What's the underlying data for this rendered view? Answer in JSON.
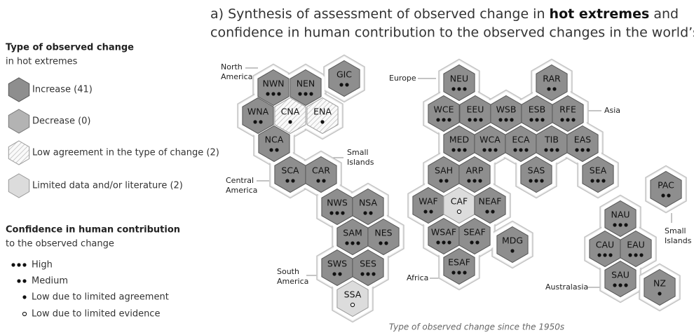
{
  "title": {
    "line1_pre": "a) Synthesis of assessment of observed change in ",
    "line1_bold": "hot extremes",
    "line1_post": " and",
    "line2": "confidence in human contribution to the observed changes in the world’s regions"
  },
  "legend": {
    "type_heading": "Type of observed change",
    "type_subheading": "in hot extremes",
    "types": [
      "Increase (41)",
      "Decrease (0)",
      "Low agreement in the type of change (2)",
      "Limited data and/or literature (2)"
    ],
    "confidence_heading": "Confidence in human contribution",
    "confidence_subheading": "to the observed change",
    "confidence": [
      "High",
      "Medium",
      "Low due to limited agreement",
      "Low due to limited evidence"
    ]
  },
  "regions": [
    {
      "label": "NWN",
      "type": 0,
      "confidence": 0
    },
    {
      "label": "NEN",
      "type": 0,
      "confidence": 0
    },
    {
      "label": "GIC",
      "type": 0,
      "confidence": 1
    },
    {
      "label": "WNA",
      "type": 0,
      "confidence": 1
    },
    {
      "label": "CNA",
      "type": 2,
      "confidence": 2
    },
    {
      "label": "ENA",
      "type": 2,
      "confidence": 2
    },
    {
      "label": "NCA",
      "type": 0,
      "confidence": 1
    },
    {
      "label": "SCA",
      "type": 0,
      "confidence": 1
    },
    {
      "label": "CAR",
      "type": 0,
      "confidence": 1
    },
    {
      "label": "NWS",
      "type": 0,
      "confidence": 0
    },
    {
      "label": "NSA",
      "type": 0,
      "confidence": 1
    },
    {
      "label": "SAM",
      "type": 0,
      "confidence": 0
    },
    {
      "label": "NES",
      "type": 0,
      "confidence": 1
    },
    {
      "label": "SWS",
      "type": 0,
      "confidence": 1
    },
    {
      "label": "SES",
      "type": 0,
      "confidence": 0
    },
    {
      "label": "SSA",
      "type": 3,
      "confidence": 3
    },
    {
      "label": "NEU",
      "type": 0,
      "confidence": 0
    },
    {
      "label": "RAR",
      "type": 0,
      "confidence": 1
    },
    {
      "label": "WCE",
      "type": 0,
      "confidence": 0
    },
    {
      "label": "EEU",
      "type": 0,
      "confidence": 0
    },
    {
      "label": "WSB",
      "type": 0,
      "confidence": 0
    },
    {
      "label": "ESB",
      "type": 0,
      "confidence": 0
    },
    {
      "label": "RFE",
      "type": 0,
      "confidence": 0
    },
    {
      "label": "MED",
      "type": 0,
      "confidence": 0
    },
    {
      "label": "WCA",
      "type": 0,
      "confidence": 0
    },
    {
      "label": "ECA",
      "type": 0,
      "confidence": 0
    },
    {
      "label": "TIB",
      "type": 0,
      "confidence": 0
    },
    {
      "label": "EAS",
      "type": 0,
      "confidence": 0
    },
    {
      "label": "SAH",
      "type": 0,
      "confidence": 1
    },
    {
      "label": "ARP",
      "type": 0,
      "confidence": 0
    },
    {
      "label": "SAS",
      "type": 0,
      "confidence": 0
    },
    {
      "label": "SEA",
      "type": 0,
      "confidence": 0
    },
    {
      "label": "WAF",
      "type": 0,
      "confidence": 1
    },
    {
      "label": "CAF",
      "type": 3,
      "confidence": 3
    },
    {
      "label": "NEAF",
      "type": 0,
      "confidence": 1
    },
    {
      "label": "WSAF",
      "type": 0,
      "confidence": 0
    },
    {
      "label": "SEAF",
      "type": 0,
      "confidence": 1
    },
    {
      "label": "MDG",
      "type": 0,
      "confidence": 2
    },
    {
      "label": "ESAF",
      "type": 0,
      "confidence": 0
    },
    {
      "label": "PAC",
      "type": 0,
      "confidence": 1
    },
    {
      "label": "NAU",
      "type": 0,
      "confidence": 0
    },
    {
      "label": "CAU",
      "type": 0,
      "confidence": 0
    },
    {
      "label": "EAU",
      "type": 0,
      "confidence": 0
    },
    {
      "label": "SAU",
      "type": 0,
      "confidence": 0
    },
    {
      "label": "NZ",
      "type": 0,
      "confidence": 2
    }
  ],
  "areas": [
    [
      "North",
      "America"
    ],
    [
      "Europe"
    ],
    [
      "Asia"
    ],
    [
      "Small",
      "Islands"
    ],
    [
      "Central",
      "America"
    ],
    [
      "South",
      "America"
    ],
    [
      "Africa"
    ],
    [
      "Australasia"
    ],
    [
      "Small",
      "Islands"
    ]
  ],
  "caption": "Type of observed change since the 1950s"
}
